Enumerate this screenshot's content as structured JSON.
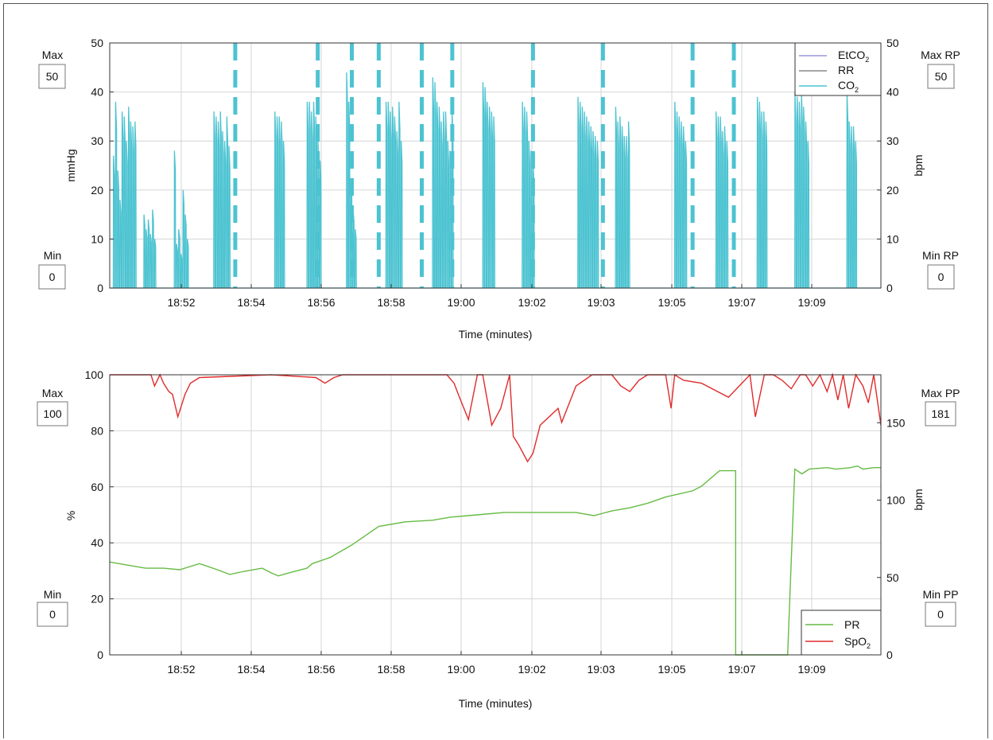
{
  "chart_data": [
    {
      "type": "line",
      "panel": "capnography",
      "xlabel": "Time (minutes)",
      "ylabel": "mmHg",
      "ylabel_right": "bpm",
      "ylim": [
        0,
        50
      ],
      "ylim_right": [
        0,
        50
      ],
      "yticks": [
        0,
        10,
        20,
        30,
        40,
        50
      ],
      "yticks_right": [
        0,
        10,
        20,
        30,
        40,
        50
      ],
      "xticks": [
        "18:52",
        "18:54",
        "18:56",
        "18:58",
        "19:00",
        "19:02",
        "19:03",
        "19:05",
        "19:07",
        "19:09"
      ],
      "grid": true,
      "legend_placement": "top-right",
      "legend": [
        {
          "base": "EtCO",
          "sub": "2",
          "color": "#9999dd",
          "muted": true
        },
        {
          "base": "RR",
          "sub": "",
          "color": "#888888",
          "muted": true
        },
        {
          "base": "CO",
          "sub": "2",
          "color": "#4cc3d1",
          "muted": false
        }
      ],
      "series": [
        {
          "name": "CO2",
          "color": "#4cc3d1",
          "bursts": [
            {
              "x": 0.2,
              "peaks": [
                27,
                38,
                24,
                18,
                36,
                35,
                30,
                37,
                34,
                33,
                34
              ]
            },
            {
              "x": 1.9,
              "peaks": [
                15,
                12,
                14,
                11,
                16,
                10
              ]
            },
            {
              "x": 3.6,
              "peaks": [
                28,
                9,
                12,
                7,
                20,
                15,
                10
              ]
            },
            {
              "x": 5.8,
              "peaks": [
                36,
                35,
                34,
                36,
                32,
                30,
                35,
                29
              ]
            },
            {
              "x": 9.2,
              "peaks": [
                36,
                35,
                35,
                34,
                30
              ]
            },
            {
              "x": 11.0,
              "peaks": [
                38,
                38,
                36,
                38,
                35,
                30,
                26
              ]
            },
            {
              "x": 13.2,
              "peaks": [
                44,
                38,
                22,
                16,
                12
              ]
            },
            {
              "x": 15.4,
              "peaks": [
                38,
                38,
                36,
                37,
                35,
                32,
                38,
                30
              ]
            },
            {
              "x": 18.0,
              "peaks": [
                43,
                42,
                38,
                37,
                34,
                36,
                36,
                30,
                28,
                36
              ]
            },
            {
              "x": 20.8,
              "peaks": [
                42,
                41,
                38,
                37,
                36,
                35
              ]
            },
            {
              "x": 23.0,
              "peaks": [
                38,
                37,
                36,
                30,
                28,
                25
              ]
            },
            {
              "x": 26.1,
              "peaks": [
                39,
                38,
                37,
                36,
                35,
                34,
                33,
                32,
                31,
                30
              ]
            },
            {
              "x": 28.2,
              "peaks": [
                37,
                34,
                35,
                33,
                31,
                31,
                34
              ]
            },
            {
              "x": 31.5,
              "peaks": [
                38,
                36,
                35,
                34,
                33,
                30
              ]
            },
            {
              "x": 33.8,
              "peaks": [
                36,
                35,
                35,
                32,
                33,
                30
              ]
            },
            {
              "x": 36.1,
              "peaks": [
                39,
                38,
                36,
                36,
                34
              ]
            },
            {
              "x": 38.2,
              "peaks": [
                40,
                39,
                38,
                40,
                37,
                34,
                30
              ]
            },
            {
              "x": 41.1,
              "peaks": [
                40,
                34,
                33,
                33,
                30
              ]
            }
          ],
          "end_x": 43
        }
      ],
      "markers": {
        "color": "#4cc3d1",
        "x": [
          7.0,
          11.6,
          13.5,
          15.0,
          17.4,
          19.1,
          23.6,
          27.5,
          32.5,
          34.8
        ]
      }
    },
    {
      "type": "line",
      "panel": "oximetry",
      "xlabel": "Time (minutes)",
      "ylabel": "%",
      "ylabel_right": "bpm",
      "ylim": [
        0,
        100
      ],
      "ylim_right": [
        0,
        181
      ],
      "yticks": [
        0,
        20,
        40,
        60,
        80,
        100
      ],
      "yticks_right": [
        0,
        50,
        100,
        150
      ],
      "xticks": [
        "18:52",
        "18:54",
        "18:56",
        "18:58",
        "19:00",
        "19:02",
        "19:03",
        "19:05",
        "19:07",
        "19:09"
      ],
      "grid": true,
      "legend_placement": "bottom-right",
      "legend": [
        {
          "base": "PR",
          "sub": "",
          "color": "#66bb44"
        },
        {
          "base": "SpO",
          "sub": "2",
          "color": "#e02b2b"
        }
      ],
      "series": [
        {
          "name": "PR",
          "color": "#66bb44",
          "x": [
            0,
            2,
            3,
            3.9,
            5,
            6,
            6.7,
            7.5,
            8.5,
            9,
            9.4,
            10,
            11,
            11.3,
            12.3,
            13.5,
            15,
            16.5,
            18,
            19,
            20,
            21,
            22,
            23.3,
            23.3,
            24.6,
            24.6,
            26,
            27,
            28,
            29,
            30,
            31,
            32.5,
            33,
            34,
            34.6,
            34.6,
            34.9,
            34.9,
            35,
            35.5,
            36,
            36.5,
            37,
            37.4,
            37.8,
            38.2,
            38.6,
            39,
            40,
            40.5,
            41.3,
            41.7,
            42,
            42.6,
            43
          ],
          "y": [
            60,
            56,
            56,
            55,
            59,
            55,
            52,
            54,
            56,
            53,
            51,
            53,
            56,
            59,
            63,
            71,
            83,
            86,
            87,
            89,
            90,
            91,
            92,
            92,
            92,
            92,
            92,
            92,
            90,
            93,
            95,
            98,
            102,
            106,
            109,
            119,
            119,
            119,
            119,
            0,
            0,
            0,
            0,
            0,
            0,
            0,
            0,
            120,
            117,
            120,
            121,
            120,
            121,
            122,
            120,
            121,
            121
          ]
        },
        {
          "name": "SpO2",
          "color": "#e02b2b",
          "x": [
            0,
            2.3,
            2.5,
            2.8,
            3,
            3.3,
            3.5,
            3.8,
            4.2,
            4.5,
            5,
            9,
            11.5,
            12,
            12.5,
            13,
            17,
            18.8,
            19.2,
            19.5,
            20,
            20.5,
            20.8,
            21.3,
            21.8,
            22.3,
            22.5,
            22.8,
            23.3,
            23.6,
            24,
            25,
            25.2,
            26,
            26.9,
            27.2,
            27.6,
            28,
            28.5,
            29,
            29.5,
            30,
            31,
            31.3,
            31.5,
            32,
            33,
            34.5,
            35.7,
            36,
            36.5,
            37,
            37.5,
            38,
            38.5,
            38.8,
            39.2,
            39.6,
            40,
            40.3,
            40.6,
            40.9,
            41.2,
            41.6,
            42,
            42.3,
            42.6,
            43
          ],
          "y": [
            100,
            100,
            96,
            100,
            97,
            94,
            93,
            85,
            93,
            97,
            99,
            100,
            99,
            97,
            99,
            100,
            100,
            100,
            97,
            92,
            84,
            100,
            100,
            82,
            88,
            100,
            78,
            75,
            69,
            72,
            82,
            88,
            83,
            96,
            100,
            100,
            100,
            100,
            96,
            94,
            98,
            100,
            100,
            88,
            100,
            98,
            97,
            92,
            100,
            85,
            100,
            100,
            98,
            95,
            100,
            100,
            96,
            100,
            94,
            100,
            91,
            100,
            88,
            100,
            96,
            90,
            100,
            82
          ]
        }
      ]
    }
  ],
  "panels": [
    {
      "max_label": "Max",
      "max_value": "50",
      "min_label": "Min",
      "min_value": "0",
      "max_right_label": "Max RP",
      "max_right_value": "50",
      "min_right_label": "Min RP",
      "min_right_value": "0"
    },
    {
      "max_label": "Max",
      "max_value": "100",
      "min_label": "Min",
      "min_value": "0",
      "max_right_label": "Max PP",
      "max_right_value": "181",
      "min_right_label": "Min PP",
      "min_right_value": "0"
    }
  ]
}
